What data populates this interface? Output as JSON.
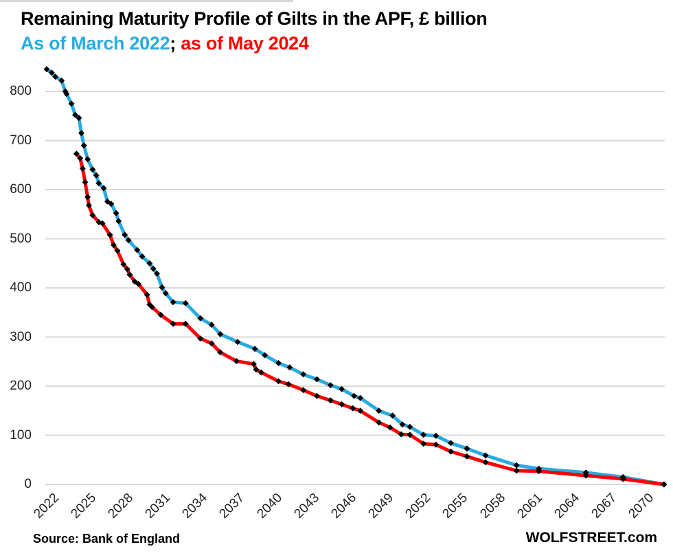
{
  "header": {
    "title": "Remaining Maturity Profile of Gilts in the APF, £ billion",
    "series1_label": "As of March 2022",
    "separator": "; ",
    "series2_label": "as of May 2024"
  },
  "footer": {
    "source": "Source: Bank of England",
    "brand": "WOLFSTREET.com"
  },
  "colors": {
    "series1": "#29ABE2",
    "series2": "#FF0000",
    "marker": "#000000",
    "gridline": "#D9D9D9",
    "tick_text": "#1F1F1F"
  },
  "chart_data": {
    "type": "line",
    "title": "Remaining Maturity Profile of Gilts in the APF, £ billion",
    "xlabel": "",
    "ylabel": "£ billion",
    "grid": "horizontal-only",
    "legend_position": "subtitle-inline",
    "x_axis": {
      "range": [
        2022,
        2072.3
      ],
      "ticks": [
        2022,
        2025,
        2028,
        2031,
        2034,
        2037,
        2040,
        2043,
        2046,
        2049,
        2052,
        2055,
        2058,
        2061,
        2064,
        2067,
        2070
      ],
      "tick_rotation_deg": -45
    },
    "y_axis": {
      "range": [
        0,
        860
      ],
      "ticks": [
        0,
        100,
        200,
        300,
        400,
        500,
        600,
        700,
        800
      ]
    },
    "marker": {
      "shape": "diamond",
      "color": "#000000",
      "size": 9
    },
    "series": [
      {
        "name": "As of March 2022",
        "color": "#29ABE2",
        "points": [
          [
            2022.0,
            845
          ],
          [
            2022.4,
            838
          ],
          [
            2022.7,
            830
          ],
          [
            2023.2,
            822
          ],
          [
            2023.5,
            800
          ],
          [
            2023.6,
            795
          ],
          [
            2024.0,
            775
          ],
          [
            2024.3,
            752
          ],
          [
            2024.6,
            746
          ],
          [
            2024.8,
            715
          ],
          [
            2025.0,
            690
          ],
          [
            2025.3,
            662
          ],
          [
            2025.7,
            641
          ],
          [
            2026.0,
            629
          ],
          [
            2026.2,
            613
          ],
          [
            2026.6,
            603
          ],
          [
            2026.9,
            576
          ],
          [
            2027.2,
            571
          ],
          [
            2027.6,
            552
          ],
          [
            2027.8,
            536
          ],
          [
            2028.3,
            508
          ],
          [
            2028.6,
            497
          ],
          [
            2029.3,
            477
          ],
          [
            2029.7,
            464
          ],
          [
            2030.3,
            450
          ],
          [
            2030.6,
            439
          ],
          [
            2030.9,
            429
          ],
          [
            2031.3,
            401
          ],
          [
            2031.6,
            389
          ],
          [
            2032.2,
            371
          ],
          [
            2033.2,
            369
          ],
          [
            2034.4,
            338
          ],
          [
            2035.3,
            325
          ],
          [
            2036.0,
            306
          ],
          [
            2037.4,
            290
          ],
          [
            2038.8,
            276
          ],
          [
            2039.6,
            263
          ],
          [
            2040.7,
            247
          ],
          [
            2041.6,
            238
          ],
          [
            2042.7,
            224
          ],
          [
            2043.8,
            214
          ],
          [
            2044.9,
            202
          ],
          [
            2045.8,
            194
          ],
          [
            2046.8,
            180
          ],
          [
            2047.3,
            176
          ],
          [
            2048.8,
            150
          ],
          [
            2049.9,
            140
          ],
          [
            2050.7,
            122
          ],
          [
            2051.3,
            117
          ],
          [
            2052.4,
            101
          ],
          [
            2053.4,
            99
          ],
          [
            2054.6,
            84
          ],
          [
            2055.9,
            73
          ],
          [
            2057.4,
            59
          ],
          [
            2059.9,
            39
          ],
          [
            2061.7,
            32
          ],
          [
            2065.5,
            24
          ],
          [
            2068.5,
            15
          ],
          [
            2071.8,
            0
          ]
        ]
      },
      {
        "name": "as of May 2024",
        "color": "#FF0000",
        "points": [
          [
            2024.4,
            673
          ],
          [
            2024.7,
            664
          ],
          [
            2024.9,
            643
          ],
          [
            2025.1,
            615
          ],
          [
            2025.3,
            585
          ],
          [
            2025.4,
            568
          ],
          [
            2025.7,
            548
          ],
          [
            2026.2,
            534
          ],
          [
            2026.5,
            531
          ],
          [
            2027.1,
            508
          ],
          [
            2027.4,
            487
          ],
          [
            2027.7,
            476
          ],
          [
            2028.2,
            448
          ],
          [
            2028.5,
            438
          ],
          [
            2028.7,
            427
          ],
          [
            2029.1,
            413
          ],
          [
            2029.4,
            408
          ],
          [
            2030.1,
            386
          ],
          [
            2030.3,
            366
          ],
          [
            2030.5,
            361
          ],
          [
            2031.2,
            345
          ],
          [
            2032.2,
            327
          ],
          [
            2033.2,
            327
          ],
          [
            2034.4,
            297
          ],
          [
            2035.3,
            287
          ],
          [
            2036.0,
            269
          ],
          [
            2037.3,
            251
          ],
          [
            2038.7,
            245
          ],
          [
            2038.9,
            234
          ],
          [
            2039.3,
            228
          ],
          [
            2040.7,
            210
          ],
          [
            2041.5,
            204
          ],
          [
            2042.7,
            192
          ],
          [
            2043.8,
            180
          ],
          [
            2044.9,
            171
          ],
          [
            2045.8,
            163
          ],
          [
            2046.7,
            155
          ],
          [
            2047.3,
            150
          ],
          [
            2048.8,
            126
          ],
          [
            2049.7,
            116
          ],
          [
            2050.6,
            102
          ],
          [
            2051.3,
            101
          ],
          [
            2052.4,
            83
          ],
          [
            2053.4,
            81
          ],
          [
            2054.6,
            67
          ],
          [
            2055.9,
            57
          ],
          [
            2057.4,
            45
          ],
          [
            2059.9,
            28
          ],
          [
            2061.7,
            27
          ],
          [
            2065.5,
            18
          ],
          [
            2068.5,
            11
          ],
          [
            2071.8,
            0
          ]
        ]
      }
    ]
  }
}
